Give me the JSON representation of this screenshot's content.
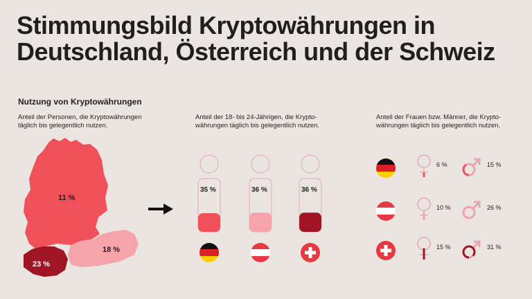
{
  "title_line1": "Stimmungsbild Kryptowährungen in",
  "title_line2": "Deutschland, Österreich und der Schweiz",
  "section_title": "Nutzung von Kryptowährungen",
  "panel1": {
    "desc_line1": "Anteil der Personen, die Kryptowährungen",
    "desc_line2": "täglich bis gelegentlich nutzen.",
    "germany": "11 %",
    "austria": "18 %",
    "switzerland": "23 %"
  },
  "panel2": {
    "desc_line1": "Anteil der 18- bis 24-Jährigen, die Krypto-",
    "desc_line2": "währungen täglich bis gelegentlich nutzen.",
    "figures": [
      {
        "country": "Deutschland",
        "value": "35 %",
        "fill": 0.35,
        "color": "#f0505a"
      },
      {
        "country": "Österreich",
        "value": "36 %",
        "fill": 0.36,
        "color": "#f6a3aa"
      },
      {
        "country": "Schweiz",
        "value": "36 %",
        "fill": 0.36,
        "color": "#a01525"
      }
    ]
  },
  "panel3": {
    "desc_line1": "Anteil der Frauen bzw. Männer, die Krypto-",
    "desc_line2": "währungen täglich bis gelegentlich nutzen.",
    "rows": [
      {
        "country": "Deutschland",
        "women": "6 %",
        "men": "15 %",
        "women_fill": 0.06,
        "men_fill": 0.15
      },
      {
        "country": "Österreich",
        "women": "10 %",
        "men": "26 %",
        "women_fill": 0.1,
        "men_fill": 0.26
      },
      {
        "country": "Schweiz",
        "women": "15 %",
        "men": "31 %",
        "women_fill": 0.15,
        "men_fill": 0.31
      }
    ]
  },
  "colors": {
    "background": "#ebe5e1",
    "germany": "#f0505a",
    "austria": "#f6a3aa",
    "switzerland": "#a01525",
    "outline": "#e4a9ae"
  },
  "icons": [
    "arrow-right-icon",
    "person-icon",
    "female-icon",
    "male-icon",
    "flag-germany-icon",
    "flag-austria-icon",
    "flag-switzerland-icon"
  ]
}
